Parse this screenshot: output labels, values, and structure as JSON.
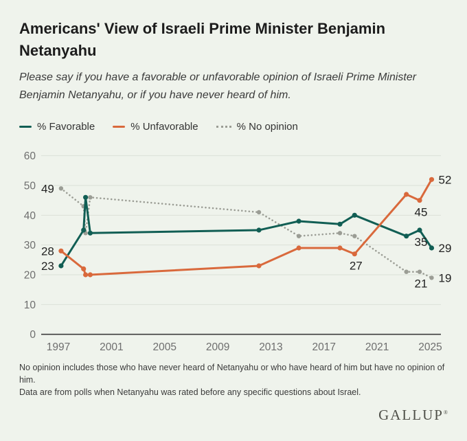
{
  "header": {
    "title": "Americans' View of Israeli Prime Minister Benjamin Netanyahu",
    "subtitle": "Please say if you have a favorable or unfavorable opinion of Israeli Prime Minister Benjamin Netanyahu, or if you have never heard of him."
  },
  "colors": {
    "background": "#eff3ec",
    "favorable": "#115e54",
    "unfavorable": "#d9693c",
    "no_opinion": "#9b9d95",
    "gridline": "#dbe1d7",
    "axis": "#3d3d3d",
    "tick_text": "#6e6e6e",
    "data_label": "#222222"
  },
  "legend": {
    "items": [
      {
        "label": "% Favorable",
        "series": "favorable",
        "style": "solid"
      },
      {
        "label": "% Unfavorable",
        "series": "unfavorable",
        "style": "solid"
      },
      {
        "label": "% No opinion",
        "series": "no_opinion",
        "style": "dotted"
      }
    ]
  },
  "chart_data": {
    "type": "line",
    "title": "Americans' View of Israeli Prime Minister Benjamin Netanyahu",
    "xlabel": "",
    "ylabel": "",
    "x_ticks": [
      "1997",
      "2001",
      "2005",
      "2009",
      "2013",
      "2017",
      "2021",
      "2025"
    ],
    "y_ticks": [
      0,
      10,
      20,
      30,
      40,
      50,
      60
    ],
    "xlim": [
      1995.8,
      2026.4
    ],
    "ylim": [
      0,
      60
    ],
    "grid": true,
    "legend_position": "top",
    "series": [
      {
        "name": "% Favorable",
        "key": "favorable",
        "style": "solid",
        "points": [
          [
            1997.2,
            23
          ],
          [
            1998.9,
            35
          ],
          [
            1999.05,
            46
          ],
          [
            1999.4,
            34
          ],
          [
            2012.1,
            35
          ],
          [
            2015.1,
            38
          ],
          [
            2018.2,
            37
          ],
          [
            2019.3,
            40
          ],
          [
            2023.2,
            33
          ],
          [
            2024.2,
            35
          ],
          [
            2025.1,
            29
          ]
        ],
        "point_labels": [
          {
            "x": 1997.2,
            "v": 23,
            "pos": "left"
          },
          {
            "x": 2024.2,
            "v": 35,
            "pos": "below"
          },
          {
            "x": 2025.1,
            "v": 29,
            "pos": "right"
          }
        ]
      },
      {
        "name": "% Unfavorable",
        "key": "unfavorable",
        "style": "solid",
        "points": [
          [
            1997.2,
            28
          ],
          [
            1998.9,
            22
          ],
          [
            1999.05,
            20
          ],
          [
            1999.4,
            20
          ],
          [
            2012.1,
            23
          ],
          [
            2015.1,
            29
          ],
          [
            2018.2,
            29
          ],
          [
            2019.3,
            27
          ],
          [
            2023.2,
            47
          ],
          [
            2024.2,
            45
          ],
          [
            2025.1,
            52
          ]
        ],
        "point_labels": [
          {
            "x": 1997.2,
            "v": 28,
            "pos": "left"
          },
          {
            "x": 2019.3,
            "v": 27,
            "pos": "below"
          },
          {
            "x": 2024.2,
            "v": 45,
            "pos": "below"
          },
          {
            "x": 2025.1,
            "v": 52,
            "pos": "right"
          }
        ]
      },
      {
        "name": "% No opinion",
        "key": "no_opinion",
        "style": "dotted",
        "points": [
          [
            1997.2,
            49
          ],
          [
            1998.9,
            43
          ],
          [
            1999.05,
            34
          ],
          [
            1999.4,
            46
          ],
          [
            2012.1,
            41
          ],
          [
            2015.1,
            33
          ],
          [
            2018.2,
            34
          ],
          [
            2019.3,
            33
          ],
          [
            2023.2,
            21
          ],
          [
            2024.2,
            21
          ],
          [
            2025.1,
            19
          ]
        ],
        "point_labels": [
          {
            "x": 1997.2,
            "v": 49,
            "pos": "left"
          },
          {
            "x": 2024.2,
            "v": 21,
            "pos": "below"
          },
          {
            "x": 2025.1,
            "v": 19,
            "pos": "right"
          }
        ]
      }
    ]
  },
  "footnotes": {
    "line1": "No opinion includes those who have never heard of Netanyahu or who have heard of him but have no opinion of him.",
    "line2": "Data are from polls when Netanyahu was rated before any specific questions about Israel."
  },
  "branding": {
    "wordmark": "GALLUP",
    "mark": "®"
  }
}
